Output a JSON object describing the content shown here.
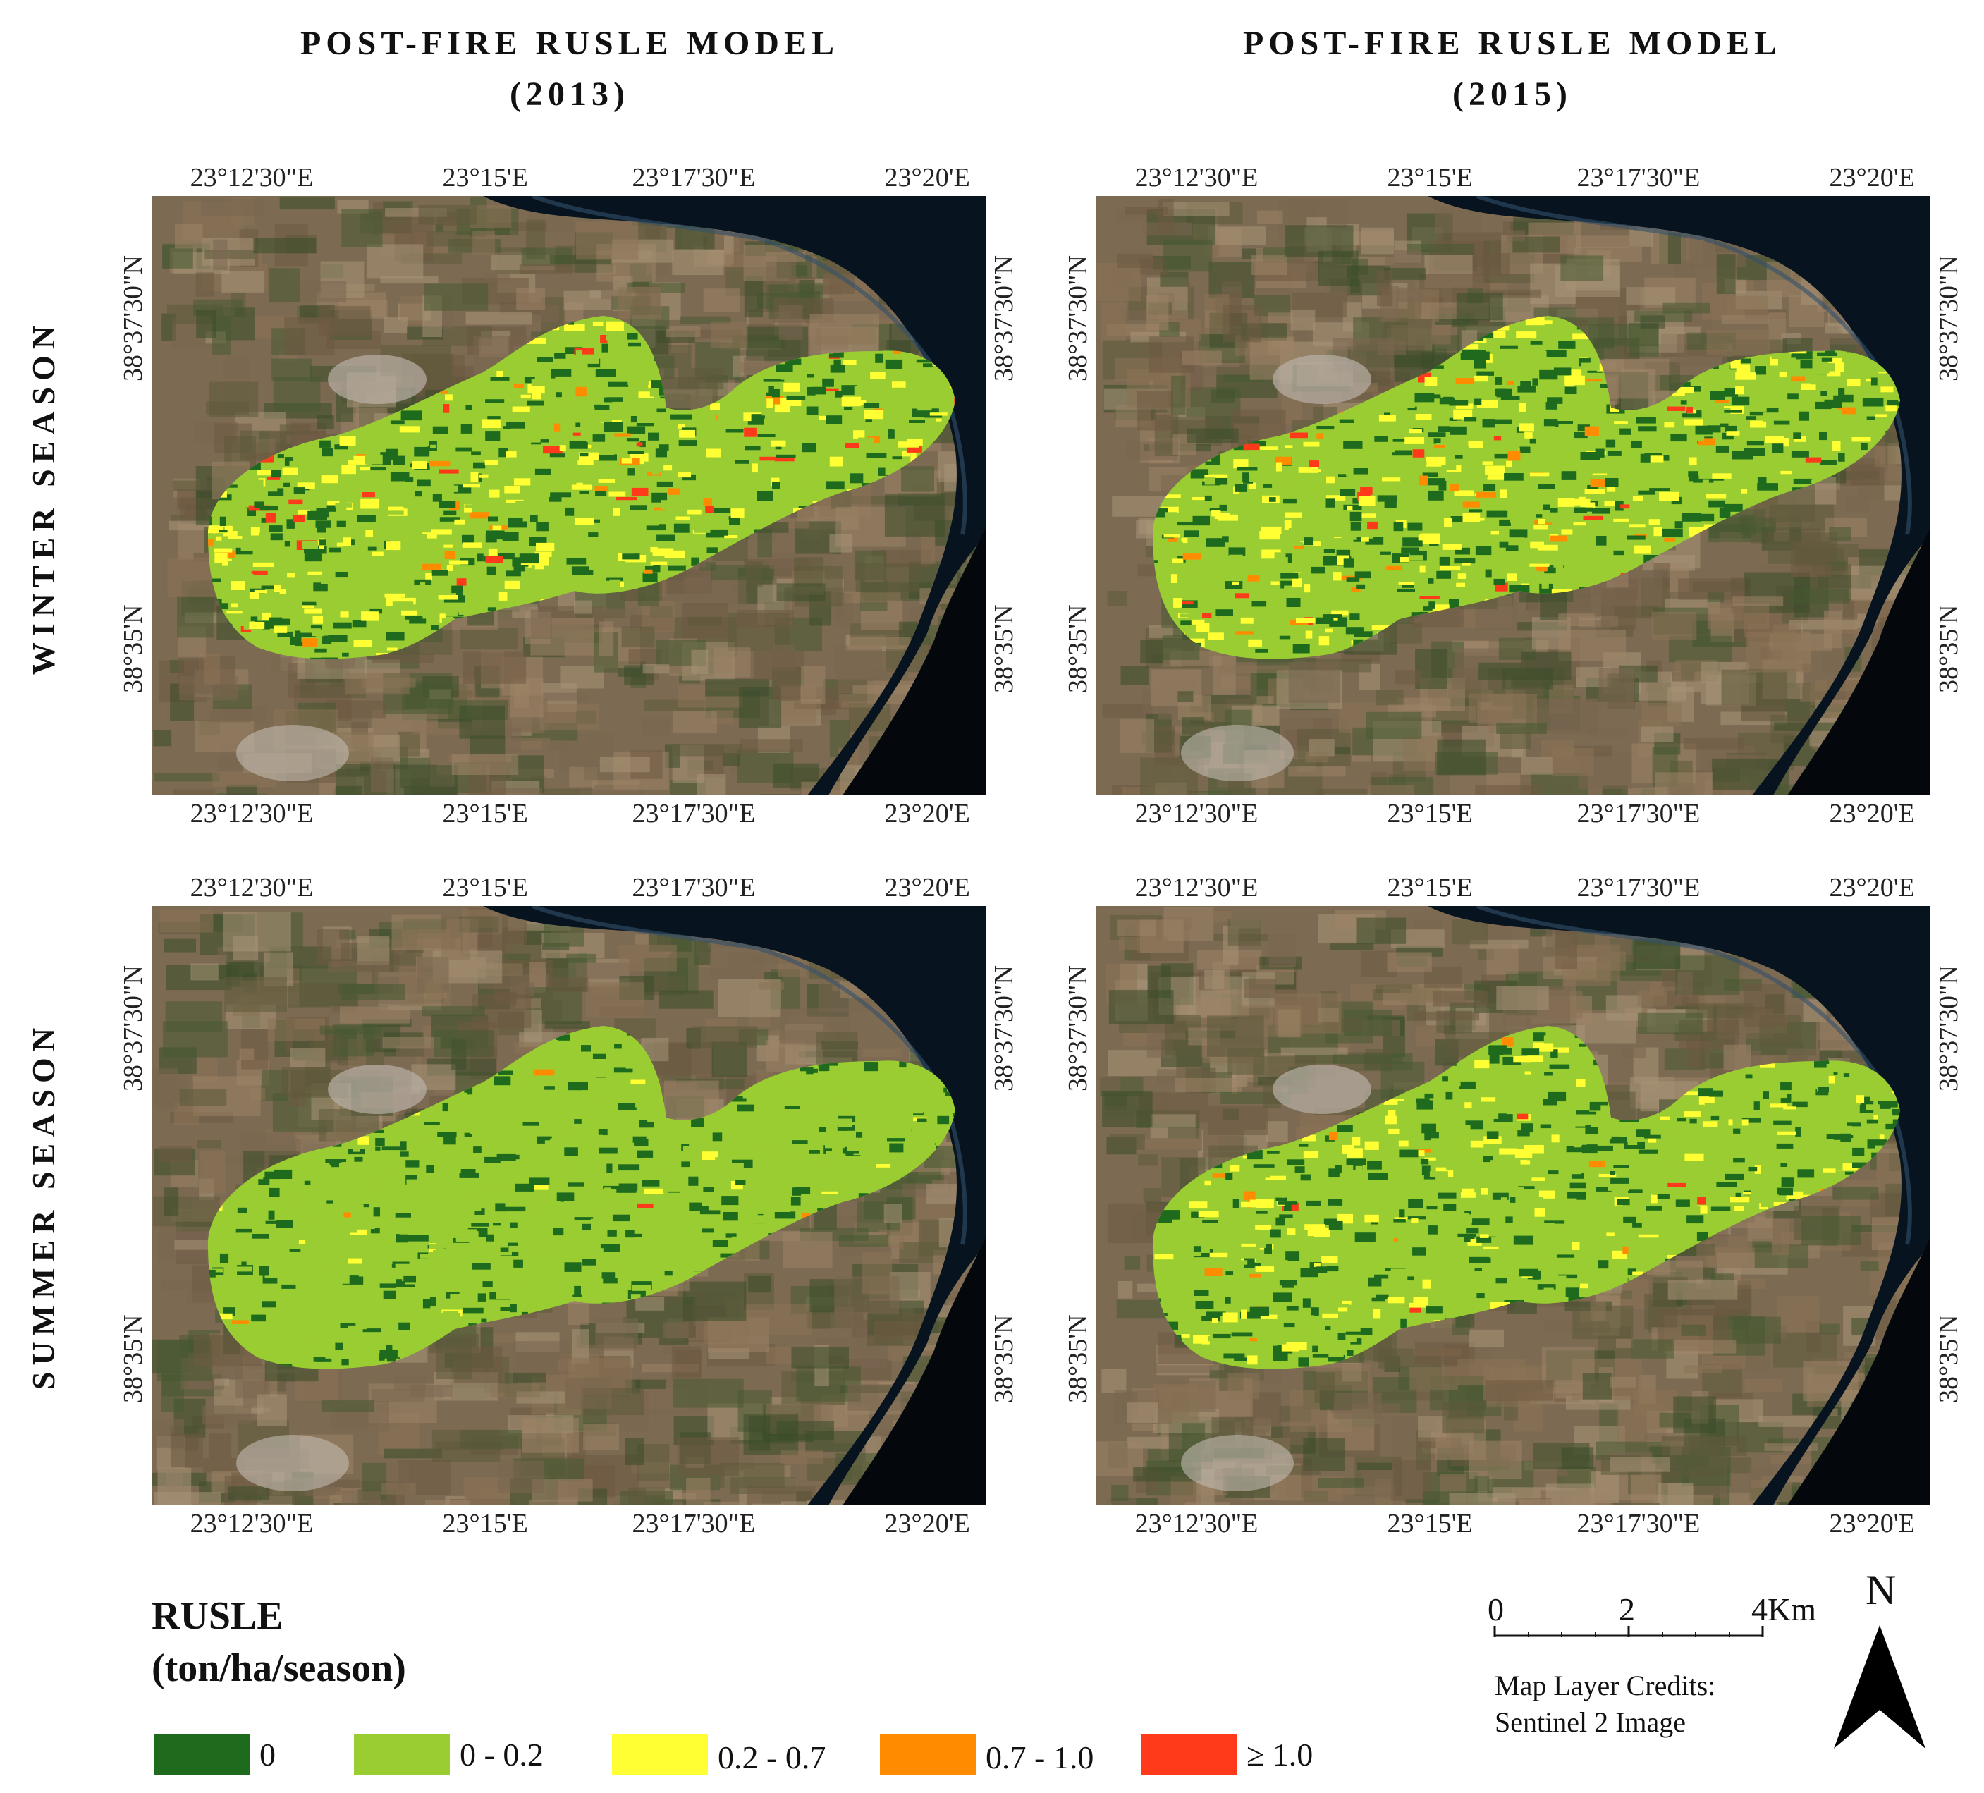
{
  "column_titles": [
    {
      "line1": "POST-FIRE RUSLE MODEL",
      "line2": "(2013)"
    },
    {
      "line1": "POST-FIRE RUSLE MODEL",
      "line2": "(2015)"
    }
  ],
  "row_titles": [
    "WINTER SEASON",
    "SUMMER SEASON"
  ],
  "longitude_ticks": [
    "23°12'30\"E",
    "23°15'E",
    "23°17'30\"E",
    "23°20'E"
  ],
  "latitude_ticks": [
    "38°37'30\"N",
    "38°35'N"
  ],
  "maps": [
    {
      "year": "2013",
      "season": "winter"
    },
    {
      "year": "2015",
      "season": "winter"
    },
    {
      "year": "2013",
      "season": "summer"
    },
    {
      "year": "2015",
      "season": "summer"
    }
  ],
  "legend": {
    "title_line1": "RUSLE",
    "title_line2": "(ton/ha/season)",
    "classes": [
      {
        "label": "0",
        "color": "#1e6b1e"
      },
      {
        "label": "0 - 0.2",
        "color": "#9acd32"
      },
      {
        "label": "0.2 - 0.7",
        "color": "#ffff33"
      },
      {
        "label": "0.7 - 1.0",
        "color": "#ff8c00"
      },
      {
        "label": "≥ 1.0",
        "color": "#ff3a1a"
      }
    ]
  },
  "scale_bar": {
    "labels": [
      "0",
      "2",
      "4Km"
    ]
  },
  "credits": {
    "line1": "Map Layer Credits:",
    "line2": "Sentinel 2 Image"
  },
  "north_arrow": {
    "label": "N"
  }
}
